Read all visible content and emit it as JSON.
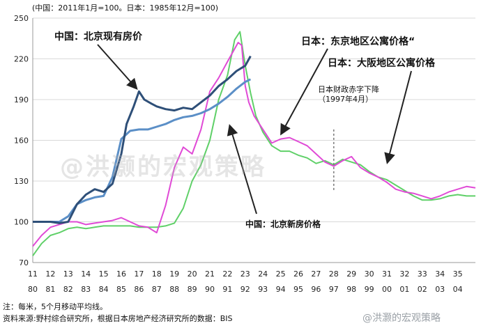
{
  "header": {
    "unit_note": "(中国：2011年1月=100。日本：1985年12月=100)"
  },
  "labels": {
    "china_existing": "中国：北京现有房价",
    "japan_tokyo": "日本：东京地区公寓价格“",
    "japan_osaka": "日本：大阪地区公寓价格",
    "fiscal_deficit": "日本财政赤字下降（1997年4月）",
    "china_new": "中国：北京新房价格"
  },
  "footer": {
    "note": "注：每米，5个月移动平均线。",
    "source": "资料来源:野村综合研究所，根据日本房地产经济研究所的数据：BIS"
  },
  "watermark": {
    "center": "@洪灏的宏观策略",
    "corner": "@洪灏的宏观策略"
  },
  "colors": {
    "china_existing": "#2e4f78",
    "china_new": "#5b8fc7",
    "japan_tokyo": "#e04ad6",
    "japan_osaka": "#5fd068",
    "grid": "#d9d9d9"
  },
  "chart_data": {
    "type": "line",
    "xlabels_top": [
      "11",
      "12",
      "13",
      "14",
      "15",
      "16",
      "17",
      "18",
      "19",
      "20",
      "21",
      "22",
      "23",
      "24",
      "25",
      "26",
      "27",
      "28",
      "29",
      "30",
      "31",
      "32",
      "33",
      "34",
      "35"
    ],
    "xlabels_bottom": [
      "80",
      "81",
      "82",
      "83",
      "84",
      "85",
      "86",
      "87",
      "88",
      "89",
      "90",
      "91",
      "92",
      "93",
      "94",
      "95",
      "96",
      "97",
      "98",
      "99",
      "00",
      "01",
      "02",
      "03",
      "04"
    ],
    "ylim": [
      70,
      250
    ],
    "yticks": [
      70,
      100,
      130,
      160,
      190,
      220,
      250
    ],
    "vline_x": 28,
    "series": [
      {
        "name": "中国：北京现有房价",
        "points": [
          [
            11,
            100
          ],
          [
            12,
            100
          ],
          [
            12.5,
            99
          ],
          [
            13,
            100
          ],
          [
            13.5,
            113
          ],
          [
            14,
            120
          ],
          [
            14.5,
            124
          ],
          [
            15,
            122
          ],
          [
            15.5,
            128
          ],
          [
            16,
            150
          ],
          [
            16.3,
            172
          ],
          [
            16.7,
            185
          ],
          [
            17,
            196
          ],
          [
            17.3,
            190
          ],
          [
            17.7,
            187
          ],
          [
            18,
            185
          ],
          [
            18.5,
            183
          ],
          [
            19,
            182
          ],
          [
            19.5,
            184
          ],
          [
            20,
            183
          ],
          [
            20.5,
            188
          ],
          [
            21,
            193
          ],
          [
            21.5,
            200
          ],
          [
            22,
            205
          ],
          [
            22.5,
            211
          ],
          [
            23,
            215
          ],
          [
            23.3,
            222
          ]
        ]
      },
      {
        "name": "中国：北京新房价格",
        "points": [
          [
            11,
            100
          ],
          [
            12,
            100
          ],
          [
            12.5,
            100
          ],
          [
            13,
            104
          ],
          [
            13.5,
            113
          ],
          [
            14,
            116
          ],
          [
            14.5,
            118
          ],
          [
            15,
            119
          ],
          [
            15.5,
            133
          ],
          [
            16,
            161
          ],
          [
            16.5,
            167
          ],
          [
            17,
            168
          ],
          [
            17.5,
            168
          ],
          [
            18,
            170
          ],
          [
            18.5,
            172
          ],
          [
            19,
            175
          ],
          [
            19.5,
            177
          ],
          [
            20,
            178
          ],
          [
            20.5,
            180
          ],
          [
            21,
            183
          ],
          [
            21.5,
            187
          ],
          [
            22,
            192
          ],
          [
            22.5,
            198
          ],
          [
            23,
            203
          ],
          [
            23.3,
            205
          ]
        ]
      },
      {
        "name": "日本：东京地区公寓价格“",
        "points": [
          [
            11,
            82
          ],
          [
            11.5,
            90
          ],
          [
            12,
            96
          ],
          [
            12.5,
            98
          ],
          [
            13,
            100
          ],
          [
            13.5,
            100
          ],
          [
            14,
            98
          ],
          [
            14.5,
            99
          ],
          [
            15,
            100
          ],
          [
            15.5,
            101
          ],
          [
            16,
            103
          ],
          [
            16.5,
            100
          ],
          [
            17,
            97
          ],
          [
            17.5,
            96
          ],
          [
            18,
            92
          ],
          [
            18.5,
            112
          ],
          [
            19,
            140
          ],
          [
            19.5,
            155
          ],
          [
            20,
            150
          ],
          [
            20.5,
            168
          ],
          [
            21,
            196
          ],
          [
            21.5,
            206
          ],
          [
            22,
            218
          ],
          [
            22.3,
            225
          ],
          [
            22.6,
            232
          ],
          [
            22.8,
            230
          ],
          [
            23,
            200
          ],
          [
            23.2,
            188
          ],
          [
            23.5,
            178
          ],
          [
            24,
            168
          ],
          [
            24.5,
            158
          ],
          [
            25,
            161
          ],
          [
            25.5,
            162
          ],
          [
            26,
            159
          ],
          [
            26.5,
            156
          ],
          [
            27,
            150
          ],
          [
            27.5,
            144
          ],
          [
            28,
            141
          ],
          [
            28.5,
            145
          ],
          [
            29,
            148
          ],
          [
            29.5,
            140
          ],
          [
            30,
            136
          ],
          [
            30.5,
            133
          ],
          [
            31,
            129
          ],
          [
            31.5,
            124
          ],
          [
            32,
            122
          ],
          [
            32.5,
            121
          ],
          [
            33,
            119
          ],
          [
            33.5,
            117
          ],
          [
            34,
            119
          ],
          [
            34.5,
            122
          ],
          [
            35,
            124
          ],
          [
            35.5,
            126
          ],
          [
            36,
            125
          ]
        ]
      },
      {
        "name": "日本：大阪地区公寓价格",
        "points": [
          [
            11,
            75
          ],
          [
            11.5,
            84
          ],
          [
            12,
            90
          ],
          [
            12.5,
            92
          ],
          [
            13,
            95
          ],
          [
            13.5,
            96
          ],
          [
            14,
            95
          ],
          [
            14.5,
            96
          ],
          [
            15,
            97
          ],
          [
            15.5,
            97
          ],
          [
            16,
            97
          ],
          [
            16.5,
            97
          ],
          [
            17,
            96
          ],
          [
            17.5,
            96
          ],
          [
            18,
            96
          ],
          [
            18.5,
            97
          ],
          [
            19,
            99
          ],
          [
            19.5,
            110
          ],
          [
            20,
            130
          ],
          [
            20.5,
            142
          ],
          [
            21,
            160
          ],
          [
            21.5,
            190
          ],
          [
            22,
            208
          ],
          [
            22.4,
            234
          ],
          [
            22.7,
            240
          ],
          [
            23,
            215
          ],
          [
            23.3,
            195
          ],
          [
            23.6,
            178
          ],
          [
            24,
            166
          ],
          [
            24.5,
            156
          ],
          [
            25,
            152
          ],
          [
            25.5,
            152
          ],
          [
            26,
            149
          ],
          [
            26.5,
            147
          ],
          [
            27,
            143
          ],
          [
            27.5,
            145
          ],
          [
            28,
            142
          ],
          [
            28.5,
            146
          ],
          [
            29,
            144
          ],
          [
            29.5,
            142
          ],
          [
            30,
            137
          ],
          [
            30.5,
            133
          ],
          [
            31,
            131
          ],
          [
            31.5,
            127
          ],
          [
            32,
            123
          ],
          [
            32.5,
            119
          ],
          [
            33,
            116
          ],
          [
            33.5,
            116
          ],
          [
            34,
            117
          ],
          [
            34.5,
            119
          ],
          [
            35,
            120
          ],
          [
            35.5,
            119
          ],
          [
            36,
            119
          ]
        ]
      }
    ]
  }
}
